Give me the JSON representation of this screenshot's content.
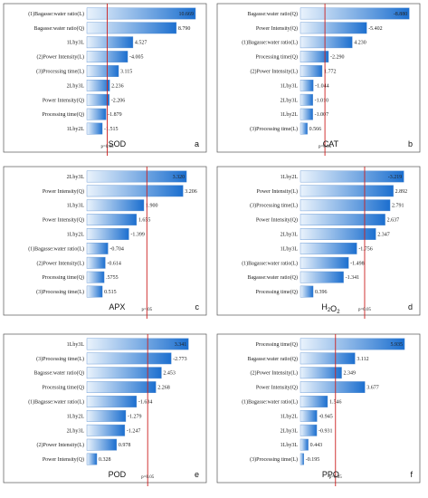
{
  "colors": {
    "bar_dark": "#1c6fcf",
    "bar_light": "#eaf3fc",
    "ref_line": "#cc1f1f",
    "frame": "#555555"
  },
  "chart_data": [
    {
      "type": "bar",
      "orientation": "horizontal",
      "title": "SOD",
      "panel_label": "a",
      "p_label": "p=0.05",
      "ref_value": 2.0,
      "xlim": [
        0,
        11.2
      ],
      "categories": [
        "(1)Bagasse:water ratio(L)",
        "Bagasse:water ratio(Q)",
        "1Lby3L",
        "(2)Power Intensity(L)",
        "(3)Processing time(L)",
        "2Lby3L",
        "Power Intensity(Q)",
        "Processing time(Q)",
        "1Lby2L"
      ],
      "values": [
        10.669,
        8.79,
        4.527,
        -4.005,
        3.115,
        2.236,
        -2.206,
        -1.879,
        -1.515
      ],
      "value_labels": [
        "10.669",
        "8.790",
        "4.527",
        "-4.005",
        "3.115",
        "2.236",
        "-2.206",
        "-1.879",
        "-1.515"
      ]
    },
    {
      "type": "bar",
      "orientation": "horizontal",
      "title": "CAT",
      "panel_label": "b",
      "p_label": "p=0.05",
      "ref_value": 2.0,
      "xlim": [
        0,
        9.3
      ],
      "categories": [
        "Bagasse:water ratio(Q)",
        "Power Intensity(Q)",
        "(1)Bagasse:water ratio(L)",
        "Processing time(Q)",
        "(2)Power Intensity(L)",
        "1Lby3L",
        "2Lby3L",
        "1Lby2L",
        "(3)Processing time(L)"
      ],
      "values": [
        -8.88,
        -5.402,
        4.23,
        -2.29,
        1.772,
        -1.044,
        -1.01,
        -1.007,
        0.566
      ],
      "value_labels": [
        "-8.880",
        "-5.402",
        "4.230",
        "-2.290",
        "1.772",
        "-1.044",
        "-1.010",
        "-1.007",
        "0.566"
      ]
    },
    {
      "type": "bar",
      "orientation": "horizontal",
      "title": "APX",
      "panel_label": "c",
      "p_label": "p=.05",
      "ref_value": 2.0,
      "xlim": [
        0,
        3.8
      ],
      "categories": [
        "2Lby3L",
        "Power Intensity(Q)",
        "1Lby3L",
        "Power Intensity(Q)",
        "1Lby2L",
        "(1)Bagasse:water ratio(L)",
        "(2)Power Intensity(L)",
        "Processing time(Q)",
        "(3)Processing time(L)"
      ],
      "values": [
        3.32,
        3.206,
        1.9,
        1.655,
        -1.399,
        -0.704,
        -0.614,
        0.5755,
        0.515
      ],
      "value_labels": [
        "3.320",
        "3.206",
        "1.900",
        "1.655",
        "-1.399",
        "-0.704",
        "-0.614",
        ".5755",
        "0.515"
      ]
    },
    {
      "type": "bar",
      "orientation": "horizontal",
      "title": "H₂O₂",
      "panel_label": "d",
      "p_label": "p=0.05",
      "ref_value": 2.0,
      "xlim": [
        0,
        3.55
      ],
      "categories": [
        "1Lby2L",
        "Power Intensity(L)",
        "(3)Processing time(L)",
        "Power Intensity(Q)",
        "2Lby3L",
        "1Lby3L",
        "(1)Bagasse:water ratio(L)",
        "Bagasse:water ratio(Q)",
        "Processing time(Q)"
      ],
      "values": [
        -3.219,
        2.892,
        2.791,
        2.637,
        2.347,
        -1.756,
        -1.498,
        -1.341,
        0.396
      ],
      "value_labels": [
        "-3.219",
        "2.892",
        "2.791",
        "2.637",
        "2.347",
        "-1.756",
        "-1.498",
        "-1.341",
        "0.396"
      ]
    },
    {
      "type": "bar",
      "orientation": "horizontal",
      "title": "POD",
      "panel_label": "e",
      "p_label": "p=0.05",
      "ref_value": 2.0,
      "xlim": [
        0,
        3.75
      ],
      "categories": [
        "1Lby3L",
        "(3)Processing time(L)",
        "Bagasse:water ratio(Q)",
        "Processing time(Q)",
        "(1)Bagasse:water ratio(L)",
        "1Lby2L",
        "2Lby3L",
        "(2)Power Intensity(L)",
        "Power Intensity(Q)"
      ],
      "values": [
        3.341,
        -2.773,
        2.453,
        2.268,
        -1.634,
        -1.279,
        -1.247,
        0.978,
        0.328
      ],
      "value_labels": [
        "3.341",
        "-2.773",
        "2.453",
        "2.268",
        "-1.634",
        "-1.279",
        "-1.247",
        "0.978",
        "0.328"
      ]
    },
    {
      "type": "bar",
      "orientation": "horizontal",
      "title": "PPO",
      "panel_label": "f",
      "p_label": "p=0.05",
      "ref_value": 2.0,
      "xlim": [
        0,
        6.5
      ],
      "categories": [
        "Processing time(Q)",
        "Bagasse:water ratio(Q)",
        "(2)Power Intensity(L)",
        "Power Intensity(Q)",
        "(1)Bagasse:water ratio(L)",
        "1Lby2L",
        "2Lby3L",
        "1Lby3L",
        "(3)Processing time(L)"
      ],
      "values": [
        5.935,
        3.112,
        2.349,
        3.677,
        1.546,
        -0.945,
        -0.931,
        0.443,
        -0.195
      ],
      "value_labels": [
        "5.935",
        "3.112",
        "2.349",
        "3.677",
        "1.546",
        "-0.945",
        "-0.931",
        "0.443",
        "-0.195"
      ]
    }
  ]
}
